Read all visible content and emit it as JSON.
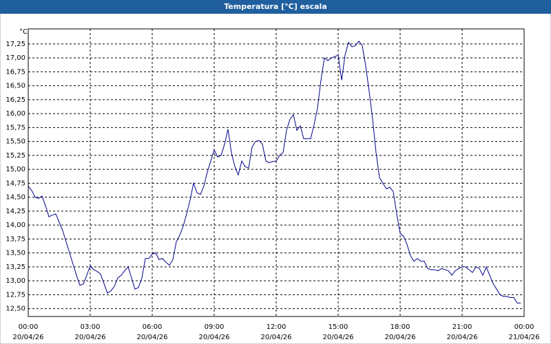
{
  "chart_data": {
    "type": "line",
    "title": "Temperatura [°C] escala",
    "y_unit": "°C",
    "x": [
      0,
      10,
      20,
      30,
      40,
      50,
      60,
      70,
      80,
      90,
      100,
      110,
      120,
      130,
      140,
      150,
      160,
      170,
      180,
      190,
      200,
      210,
      220,
      230,
      240,
      250,
      260,
      270,
      280,
      290,
      300,
      310,
      320,
      330,
      340,
      350,
      360,
      370,
      380,
      390,
      400,
      410,
      420,
      430,
      440,
      450,
      460,
      470,
      480,
      490,
      500,
      510,
      520,
      530,
      540,
      550,
      560,
      570,
      580,
      590,
      600,
      610,
      620,
      630,
      640,
      650,
      660,
      670,
      680,
      690,
      700,
      710,
      720,
      730,
      740,
      750,
      760,
      770,
      780,
      790,
      800,
      810,
      820,
      830,
      840,
      850,
      860,
      870,
      880,
      890,
      900,
      910,
      920,
      930,
      940,
      950,
      960,
      970,
      980,
      990,
      1000,
      1010,
      1020,
      1030,
      1040,
      1050,
      1060,
      1070,
      1080,
      1090,
      1100,
      1110,
      1120,
      1130,
      1140,
      1150,
      1160,
      1170,
      1180,
      1190,
      1200,
      1210,
      1220,
      1230,
      1240,
      1250,
      1260,
      1270,
      1280,
      1290,
      1300,
      1310,
      1320,
      1330,
      1340,
      1350,
      1360,
      1370,
      1380,
      1390,
      1400,
      1410,
      1420,
      1430
    ],
    "series": [
      {
        "name": "Temperatura",
        "color": "#00008b",
        "values": [
          14.7,
          14.62,
          14.5,
          14.48,
          14.52,
          14.35,
          14.15,
          14.18,
          14.2,
          14.05,
          13.9,
          13.7,
          13.5,
          13.3,
          13.1,
          12.92,
          12.94,
          13.1,
          13.27,
          13.2,
          13.17,
          13.12,
          12.95,
          12.78,
          12.82,
          12.9,
          13.05,
          13.1,
          13.18,
          13.25,
          13.05,
          12.85,
          12.88,
          13.05,
          13.4,
          13.4,
          13.48,
          13.5,
          13.38,
          13.4,
          13.33,
          13.28,
          13.38,
          13.7,
          13.82,
          13.98,
          14.2,
          14.45,
          14.75,
          14.58,
          14.55,
          14.7,
          14.95,
          15.15,
          15.35,
          15.22,
          15.25,
          15.45,
          15.72,
          15.3,
          15.05,
          14.9,
          15.15,
          15.05,
          15.02,
          15.4,
          15.5,
          15.52,
          15.45,
          15.15,
          15.12,
          15.14,
          15.15,
          15.25,
          15.3,
          15.7,
          15.9,
          15.98,
          15.7,
          15.78,
          15.55,
          15.55,
          15.55,
          15.8,
          16.1,
          16.6,
          17.0,
          16.95,
          17.0,
          17.02,
          17.05,
          16.6,
          17.05,
          17.28,
          17.2,
          17.22,
          17.3,
          17.22,
          16.85,
          16.4,
          15.9,
          15.3,
          14.85,
          14.75,
          14.65,
          14.68,
          14.6,
          14.2,
          13.85,
          13.8,
          13.65,
          13.45,
          13.35,
          13.4,
          13.35,
          13.35,
          13.22,
          13.2,
          13.2,
          13.18,
          13.22,
          13.2,
          13.18,
          13.1,
          13.18,
          13.22,
          13.25,
          13.25,
          13.2,
          13.15,
          13.25,
          13.22,
          13.1,
          13.25,
          13.1,
          12.95,
          12.85,
          12.75,
          12.72,
          12.72,
          12.7,
          12.7,
          12.6,
          12.6
        ]
      }
    ],
    "xlim": [
      0,
      1440
    ],
    "xticks": [
      {
        "value": 0,
        "label": "00:00"
      },
      {
        "value": 180,
        "label": "03:00"
      },
      {
        "value": 360,
        "label": "06:00"
      },
      {
        "value": 540,
        "label": "09:00"
      },
      {
        "value": 720,
        "label": "12:00"
      },
      {
        "value": 900,
        "label": "15:00"
      },
      {
        "value": 1080,
        "label": "18:00"
      },
      {
        "value": 1260,
        "label": "21:00"
      },
      {
        "value": 1440,
        "label": "00:00"
      }
    ],
    "xtick_dates": [
      "20/04/26",
      "20/04/26",
      "20/04/26",
      "20/04/26",
      "20/04/26",
      "20/04/26",
      "20/04/26",
      "20/04/26",
      "21/04/26"
    ],
    "ylim": [
      12.36,
      17.52
    ],
    "yticks": [
      {
        "value": 12.5,
        "label": "12,50"
      },
      {
        "value": 12.75,
        "label": "12,75"
      },
      {
        "value": 13,
        "label": "13,00"
      },
      {
        "value": 13.25,
        "label": "13,25"
      },
      {
        "value": 13.5,
        "label": "13,50"
      },
      {
        "value": 13.75,
        "label": "13,75"
      },
      {
        "value": 14,
        "label": "14,00"
      },
      {
        "value": 14.25,
        "label": "14,25"
      },
      {
        "value": 14.5,
        "label": "14,50"
      },
      {
        "value": 14.75,
        "label": "14,75"
      },
      {
        "value": 15,
        "label": "15,00"
      },
      {
        "value": 15.25,
        "label": "15,25"
      },
      {
        "value": 15.5,
        "label": "15,50"
      },
      {
        "value": 15.75,
        "label": "15,75"
      },
      {
        "value": 16,
        "label": "16,00"
      },
      {
        "value": 16.25,
        "label": "16,25"
      },
      {
        "value": 16.5,
        "label": "16,50"
      },
      {
        "value": 16.75,
        "label": "16,75"
      },
      {
        "value": 17,
        "label": "17,00"
      },
      {
        "value": 17.25,
        "label": "17,25"
      }
    ],
    "grid": true
  }
}
